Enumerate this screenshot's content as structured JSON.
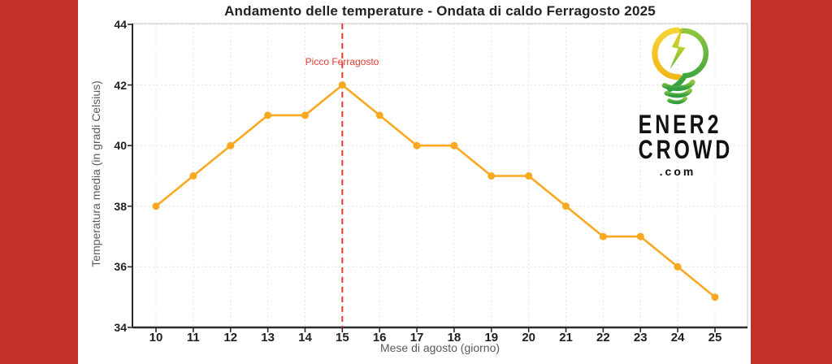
{
  "page": {
    "background_color": "#ffffff",
    "side_bar_color": "#c23128"
  },
  "chart_data": {
    "type": "line",
    "title": "Andamento delle temperature - Ondata di caldo Ferragosto 2025",
    "xlabel": "Mese di agosto (giorno)",
    "ylabel": "Temperatura media (in gradi Celsius)",
    "x": [
      10,
      11,
      12,
      13,
      14,
      15,
      16,
      17,
      18,
      19,
      20,
      21,
      22,
      23,
      24,
      25
    ],
    "values": [
      38,
      39,
      40,
      41,
      41,
      42,
      41,
      40,
      40,
      39,
      39,
      38,
      37,
      37,
      36,
      35
    ],
    "ylim": [
      34,
      44
    ],
    "yticks": [
      34,
      36,
      38,
      40,
      42,
      44
    ],
    "grid": true,
    "legend": "none",
    "line_color": "#faa81e",
    "marker": "circle",
    "annotation": {
      "label": "Picco Ferragosto",
      "x": 15,
      "line_style": "dashed",
      "color": "#e23b30"
    }
  },
  "logo": {
    "line1": "ENER2",
    "line2": "CROWD",
    "line3": ".com",
    "icon": "lightbulb-lightning-leaf-icon",
    "icon_colors": {
      "yellow": "#f2c51b",
      "light_green": "#8dc63f",
      "green": "#2f9e41"
    }
  }
}
